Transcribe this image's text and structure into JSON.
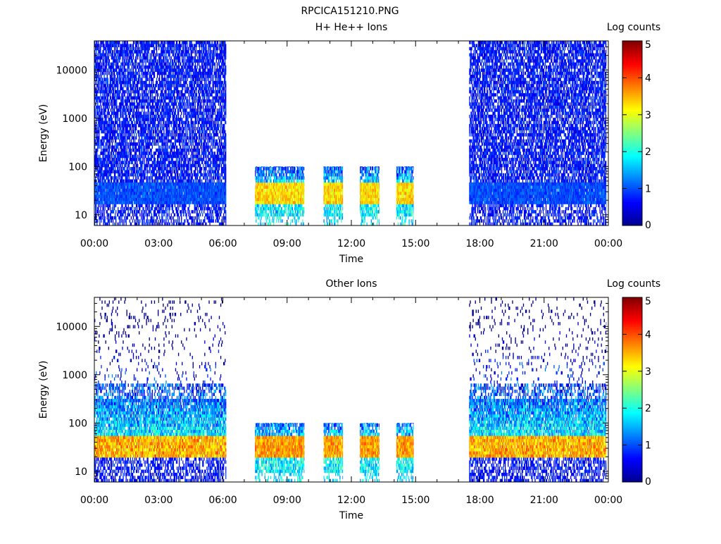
{
  "figure_title": "RPCICA151210.PNG",
  "colors": {
    "background": "#ffffff",
    "axis": "#000000",
    "colormap": [
      "#00008f",
      "#0000ff",
      "#0080ff",
      "#00ffff",
      "#80ff80",
      "#ffff00",
      "#ff8000",
      "#ff0000",
      "#800000"
    ]
  },
  "chart_data": [
    {
      "type": "heatmap",
      "title": "H+ He++ Ions",
      "xlabel": "Time",
      "ylabel": "Energy (eV)",
      "x_unit": "hours",
      "xlim": [
        0,
        24
      ],
      "x_ticks": [
        0,
        3,
        6,
        9,
        12,
        15,
        18,
        21,
        24
      ],
      "x_tick_labels": [
        "00:00",
        "03:00",
        "06:00",
        "09:00",
        "12:00",
        "15:00",
        "18:00",
        "21:00",
        "00:00"
      ],
      "y_scale": "log",
      "ylim": [
        6,
        40000
      ],
      "y_ticks": [
        10,
        100,
        1000,
        10000
      ],
      "y_tick_labels": [
        "10",
        "100",
        "1000",
        "10000"
      ],
      "colorbar": {
        "label": "Log counts",
        "range": [
          0,
          5
        ],
        "ticks": [
          0,
          1,
          2,
          3,
          4,
          5
        ],
        "tick_labels": [
          "0",
          "1",
          "2",
          "3",
          "4",
          "5"
        ]
      },
      "data_intervals": [
        {
          "start": 0.0,
          "end": 6.15,
          "emax": 40000,
          "mode": "survey"
        },
        {
          "start": 7.5,
          "end": 9.8,
          "emax": 100,
          "mode": "burst"
        },
        {
          "start": 10.7,
          "end": 11.6,
          "emax": 100,
          "mode": "burst"
        },
        {
          "start": 12.4,
          "end": 13.3,
          "emax": 100,
          "mode": "burst"
        },
        {
          "start": 14.1,
          "end": 14.9,
          "emax": 100,
          "mode": "burst"
        },
        {
          "start": 17.5,
          "end": 23.9,
          "emax": 40000,
          "mode": "survey"
        }
      ],
      "peak_band": {
        "energy_low": 18,
        "energy_high": 45,
        "log_counts_survey": 1.0,
        "log_counts_burst": 3.3
      },
      "background_log_counts": 0.7
    },
    {
      "type": "heatmap",
      "title": "Other Ions",
      "xlabel": "Time",
      "ylabel": "Energy (eV)",
      "x_unit": "hours",
      "xlim": [
        0,
        24
      ],
      "x_ticks": [
        0,
        3,
        6,
        9,
        12,
        15,
        18,
        21,
        24
      ],
      "x_tick_labels": [
        "00:00",
        "03:00",
        "06:00",
        "09:00",
        "12:00",
        "15:00",
        "18:00",
        "21:00",
        "00:00"
      ],
      "y_scale": "log",
      "ylim": [
        6,
        40000
      ],
      "y_ticks": [
        10,
        100,
        1000,
        10000
      ],
      "y_tick_labels": [
        "10",
        "100",
        "1000",
        "10000"
      ],
      "colorbar": {
        "label": "Log counts",
        "range": [
          0,
          5
        ],
        "ticks": [
          0,
          1,
          2,
          3,
          4,
          5
        ],
        "tick_labels": [
          "0",
          "1",
          "2",
          "3",
          "4",
          "5"
        ]
      },
      "data_intervals": [
        {
          "start": 0.0,
          "end": 6.15,
          "emax": 40000,
          "mode": "survey"
        },
        {
          "start": 7.5,
          "end": 9.8,
          "emax": 100,
          "mode": "burst"
        },
        {
          "start": 10.7,
          "end": 11.6,
          "emax": 100,
          "mode": "burst"
        },
        {
          "start": 12.4,
          "end": 13.3,
          "emax": 100,
          "mode": "burst"
        },
        {
          "start": 14.1,
          "end": 14.9,
          "emax": 100,
          "mode": "burst"
        },
        {
          "start": 17.5,
          "end": 23.9,
          "emax": 40000,
          "mode": "survey"
        }
      ],
      "peak_band": {
        "energy_low": 20,
        "energy_high": 55,
        "log_counts_survey": 3.5,
        "log_counts_burst": 3.6
      },
      "background_log_counts": 1.8
    }
  ]
}
